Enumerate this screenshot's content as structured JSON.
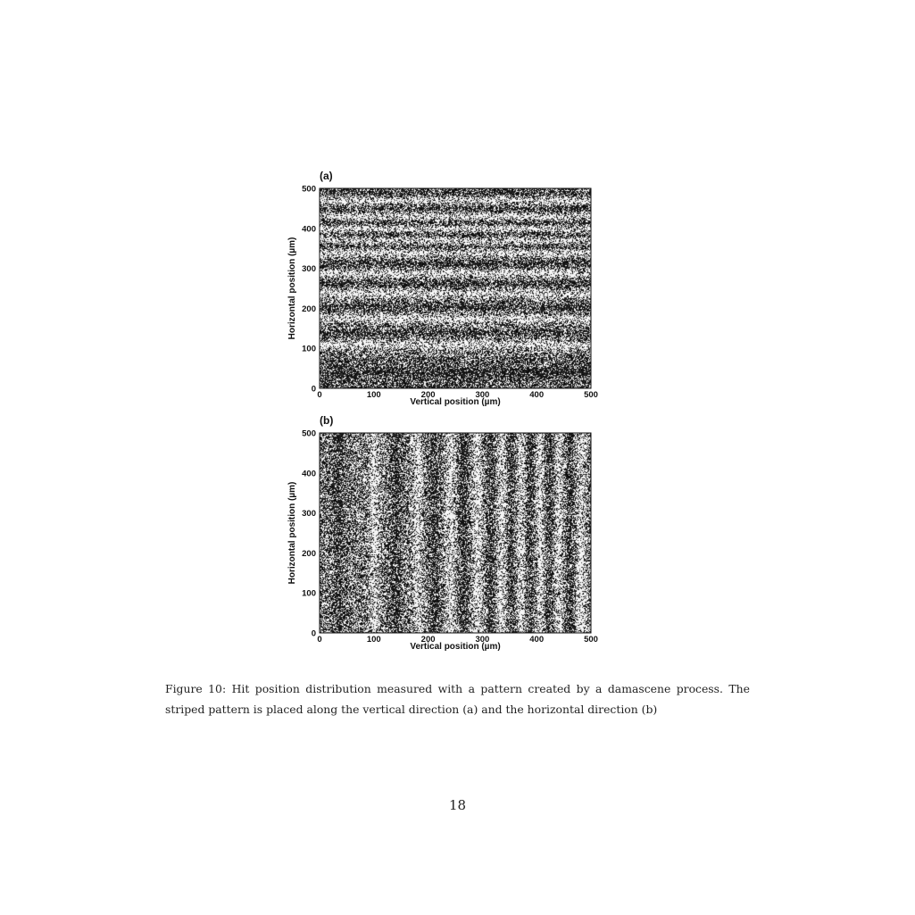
{
  "figure": {
    "caption": "Figure 10: Hit position distribution measured with a pattern created by a damascene process. The striped pattern is placed along the vertical direction (a) and the horizontal direction (b)",
    "page_number": "18"
  },
  "chart_data": [
    {
      "type": "scatter",
      "panel_label": "(a)",
      "xlabel": "Vertical position (µm)",
      "ylabel": "Horizontal position (µm)",
      "xlim": [
        0,
        500
      ],
      "ylim": [
        0,
        500
      ],
      "x_ticks": [
        "0",
        "100",
        "200",
        "300",
        "400",
        "500"
      ],
      "y_ticks": [
        "0",
        "100",
        "200",
        "300",
        "400",
        "500"
      ],
      "stripe_orientation": "horizontal",
      "bright_stripe_centers": [
        110,
        175,
        238,
        288,
        340,
        370,
        400,
        430,
        470
      ],
      "dark_stripe_centers": [
        40,
        140,
        205,
        262,
        312,
        355,
        385,
        415,
        450,
        490
      ],
      "grid": false
    },
    {
      "type": "scatter",
      "panel_label": "(b)",
      "xlabel": "Vertical position (µm)",
      "ylabel": "Horizontal position (µm)",
      "xlim": [
        0,
        500
      ],
      "ylim": [
        0,
        500
      ],
      "x_ticks": [
        "0",
        "100",
        "200",
        "300",
        "400",
        "500"
      ],
      "y_ticks": [
        "0",
        "100",
        "200",
        "300",
        "400",
        "500"
      ],
      "stripe_orientation": "vertical",
      "bright_stripe_centers": [
        100,
        180,
        240,
        290,
        335,
        370,
        405,
        440,
        480
      ],
      "dark_stripe_centers": [
        35,
        140,
        210,
        265,
        315,
        352,
        388,
        422,
        460
      ],
      "grid": false
    }
  ]
}
